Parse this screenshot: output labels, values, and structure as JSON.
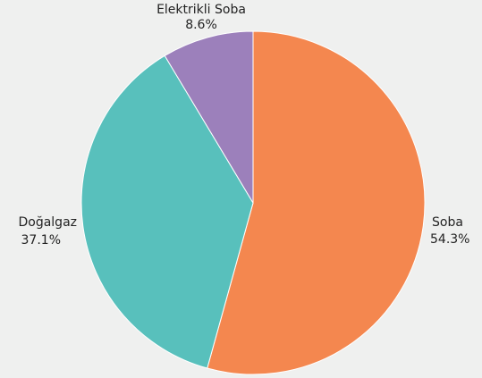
{
  "chart_data": {
    "type": "pie",
    "start_angle_deg": 0,
    "direction": "clockwise",
    "slices": [
      {
        "label": "Soba",
        "value": 54.3,
        "value_label": "54.3%",
        "color": "#f4874f"
      },
      {
        "label": "Doğalgaz",
        "value": 37.1,
        "value_label": "37.1%",
        "color": "#58c0bc"
      },
      {
        "label": "Elektrikli Soba",
        "value": 8.6,
        "value_label": "8.6%",
        "color": "#9c80bb"
      }
    ]
  },
  "colors": {
    "background": "#eff0ef",
    "label_text": "#222222"
  }
}
